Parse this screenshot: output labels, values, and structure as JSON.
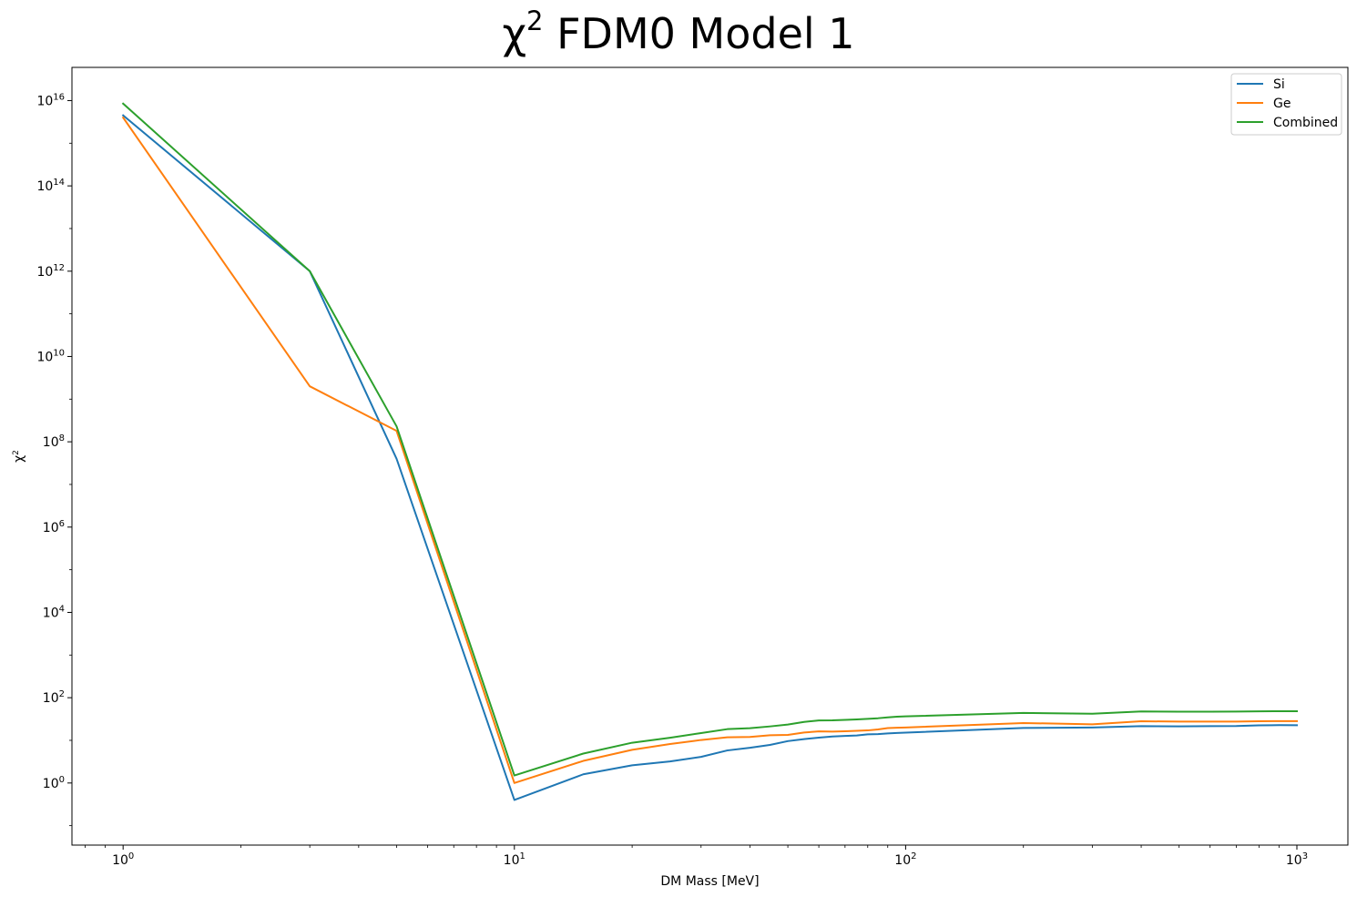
{
  "chart_data": {
    "type": "line",
    "title": "χ² FDM0 Model 1",
    "title_parts": {
      "chi": "χ",
      "sup": "2",
      "rest": " FDM0 Model 1"
    },
    "xlabel": "DM Mass [MeV]",
    "ylabel": "χ²",
    "ylabel_parts": {
      "chi": "χ",
      "sup": "2"
    },
    "xscale": "log",
    "yscale": "log",
    "xlim": [
      0.74,
      1350
    ],
    "ylim": [
      0.035,
      6e+16
    ],
    "grid": false,
    "legend_position": "top-right",
    "x_ticks": [
      {
        "value": 1,
        "base": "10",
        "exp": "0"
      },
      {
        "value": 10,
        "base": "10",
        "exp": "1"
      },
      {
        "value": 100,
        "base": "10",
        "exp": "2"
      },
      {
        "value": 1000,
        "base": "10",
        "exp": "3"
      }
    ],
    "y_ticks": [
      {
        "value": 1,
        "base": "10",
        "exp": "0"
      },
      {
        "value": 100,
        "base": "10",
        "exp": "2"
      },
      {
        "value": 10000,
        "base": "10",
        "exp": "4"
      },
      {
        "value": 1000000,
        "base": "10",
        "exp": "6"
      },
      {
        "value": 100000000,
        "base": "10",
        "exp": "8"
      },
      {
        "value": 10000000000,
        "base": "10",
        "exp": "10"
      },
      {
        "value": 1000000000000,
        "base": "10",
        "exp": "12"
      },
      {
        "value": 100000000000000,
        "base": "10",
        "exp": "14"
      },
      {
        "value": 10000000000000000,
        "base": "10",
        "exp": "16"
      }
    ],
    "x": [
      1,
      3,
      5,
      10,
      15,
      20,
      25,
      30,
      35,
      40,
      45,
      50,
      55,
      60,
      65,
      70,
      75,
      80,
      85,
      90,
      95,
      100,
      200,
      300,
      400,
      500,
      600,
      700,
      800,
      900,
      1000
    ],
    "series": [
      {
        "name": "Si",
        "color": "#1f77b4",
        "values": [
          4500000000000000.0,
          1000000000000.0,
          40000000.0,
          0.4,
          1.6,
          2.6,
          3.2,
          4.1,
          5.8,
          6.7,
          7.8,
          9.6,
          10.7,
          11.6,
          12.3,
          12.7,
          13.0,
          13.8,
          14.0,
          14.5,
          14.9,
          15.2,
          19.5,
          20.0,
          21.5,
          21.3,
          21.5,
          21.6,
          22.5,
          22.7,
          22.6
        ]
      },
      {
        "name": "Ge",
        "color": "#ff7f0e",
        "values": [
          4000000000000000.0,
          2000000000.0,
          180000000.0,
          1.0,
          3.3,
          6.0,
          8.2,
          10.2,
          11.8,
          12.0,
          13.2,
          13.4,
          15.3,
          16.2,
          16.0,
          16.3,
          16.7,
          17.1,
          18.0,
          19.4,
          19.8,
          20.0,
          25.5,
          23.8,
          28.0,
          27.5,
          27.6,
          27.6,
          28.0,
          28.2,
          28.3
        ]
      },
      {
        "name": "Combined",
        "color": "#2ca02c",
        "values": [
          8500000000000000.0,
          1000000000000.0,
          230000000.0,
          1.5,
          4.9,
          8.8,
          11.5,
          14.8,
          18.3,
          19.3,
          21.2,
          23.5,
          27.0,
          29.3,
          29.5,
          30.2,
          31.0,
          32.0,
          33.0,
          34.5,
          35.8,
          36.5,
          44.0,
          42.0,
          47.5,
          47.0,
          47.0,
          47.2,
          48.0,
          48.2,
          48.3
        ]
      }
    ]
  }
}
